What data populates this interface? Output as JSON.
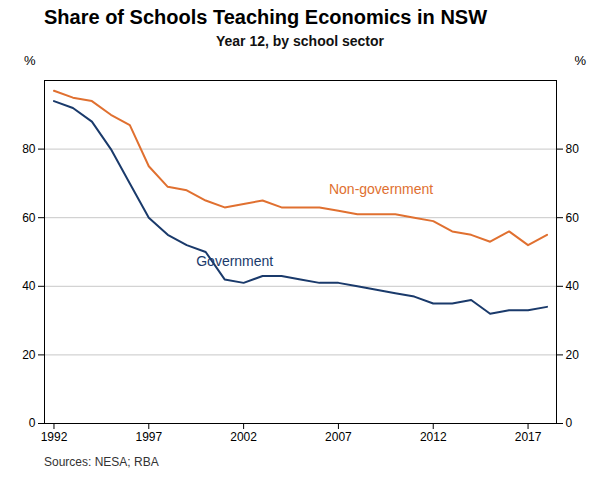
{
  "chart_data": {
    "type": "line",
    "title": "Share of Schools Teaching Economics in NSW",
    "subtitle": "Year 12, by school sector",
    "source": "Sources: NESA; RBA",
    "ylabel": "%",
    "y2label": "%",
    "x": [
      1992,
      1993,
      1994,
      1995,
      1996,
      1997,
      1998,
      1999,
      2000,
      2001,
      2002,
      2003,
      2004,
      2005,
      2006,
      2007,
      2008,
      2009,
      2010,
      2011,
      2012,
      2013,
      2014,
      2015,
      2016,
      2017,
      2018
    ],
    "series": [
      {
        "name": "Government",
        "color": "#1a3a6b",
        "label_at": [
          1999.5,
          46
        ],
        "values": [
          94,
          92,
          88,
          80,
          70,
          60,
          55,
          52,
          50,
          42,
          41,
          43,
          43,
          42,
          41,
          41,
          40,
          39,
          38,
          37,
          35,
          35,
          36,
          32,
          33,
          33,
          34
        ]
      },
      {
        "name": "Non-government",
        "color": "#e07030",
        "label_at": [
          2006.5,
          67
        ],
        "values": [
          97,
          95,
          94,
          90,
          87,
          75,
          69,
          68,
          65,
          63,
          64,
          65,
          63,
          63,
          63,
          62,
          61,
          61,
          61,
          60,
          59,
          56,
          55,
          53,
          56,
          52,
          55
        ]
      }
    ],
    "xlim": [
      1991.5,
      2018.5
    ],
    "xticks": [
      1992,
      1997,
      2002,
      2007,
      2012,
      2017
    ],
    "ylim": [
      0,
      100
    ],
    "yticks": [
      0,
      20,
      40,
      60,
      80
    ],
    "y2lim": [
      0,
      100
    ],
    "y2ticks": [
      0,
      20,
      40,
      60,
      80
    ],
    "grid": true
  }
}
